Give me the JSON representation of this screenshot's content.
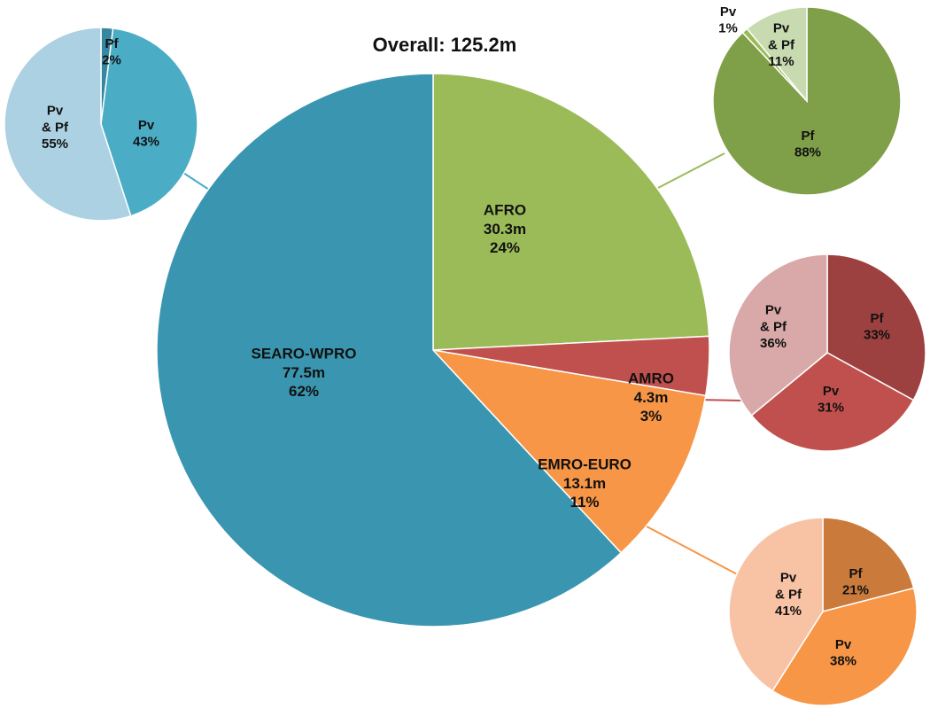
{
  "chart_data": [
    {
      "type": "pie",
      "title": "Overall: 125.2m",
      "slices": [
        {
          "label": "AFRO",
          "value": 30.3,
          "value_label": "30.3m",
          "percent_label": "24%",
          "color": "#9bbb59"
        },
        {
          "label": "AMRO",
          "value": 4.3,
          "value_label": "4.3m",
          "percent_label": "3%",
          "color": "#c0504d"
        },
        {
          "label": "EMRO-EURO",
          "value": 13.1,
          "value_label": "13.1m",
          "percent_label": "11%",
          "color": "#f79646"
        },
        {
          "label": "SEARO-WPRO",
          "value": 77.5,
          "value_label": "77.5m",
          "percent_label": "62%",
          "color": "#3a96b0"
        }
      ]
    },
    {
      "type": "pie",
      "region": "SEARO-WPRO",
      "slices": [
        {
          "label": "Pf",
          "value": 2,
          "percent_label": "2%",
          "color": "#3687a0"
        },
        {
          "label": "Pv",
          "value": 43,
          "percent_label": "43%",
          "color": "#4bacc6"
        },
        {
          "label": "Pv & Pf",
          "value": 55,
          "percent_label": "55%",
          "color": "#acd1e2"
        }
      ]
    },
    {
      "type": "pie",
      "region": "AFRO",
      "slices": [
        {
          "label": "Pf",
          "value": 88,
          "percent_label": "88%",
          "color": "#7f9f48"
        },
        {
          "label": "Pv",
          "value": 1,
          "percent_label": "1%",
          "color": "#9bbb59"
        },
        {
          "label": "Pv & Pf",
          "value": 11,
          "percent_label": "11%",
          "color": "#c8dab0"
        }
      ]
    },
    {
      "type": "pie",
      "region": "AMRO",
      "slices": [
        {
          "label": "Pf",
          "value": 33,
          "percent_label": "33%",
          "color": "#9c413f"
        },
        {
          "label": "Pv",
          "value": 31,
          "percent_label": "31%",
          "color": "#c0504d"
        },
        {
          "label": "Pv & Pf",
          "value": 36,
          "percent_label": "36%",
          "color": "#d8a9a8"
        }
      ]
    },
    {
      "type": "pie",
      "region": "EMRO-EURO",
      "slices": [
        {
          "label": "Pf",
          "value": 21,
          "percent_label": "21%",
          "color": "#ca7a3a"
        },
        {
          "label": "Pv",
          "value": 38,
          "percent_label": "38%",
          "color": "#f79646"
        },
        {
          "label": "Pv & Pf",
          "value": 41,
          "percent_label": "41%",
          "color": "#f8c3a5"
        }
      ]
    }
  ]
}
